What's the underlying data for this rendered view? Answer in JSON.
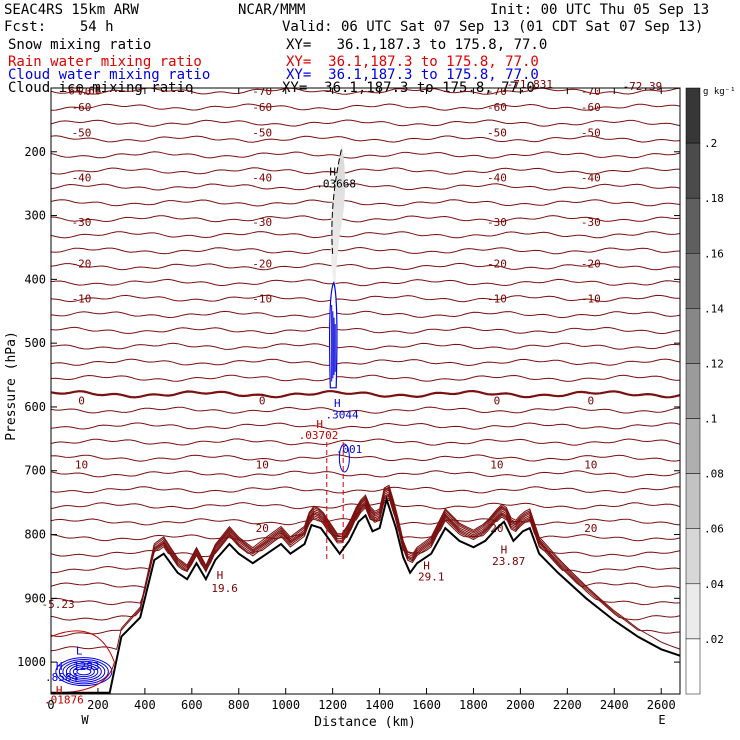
{
  "header": {
    "model": "SEAC4RS 15km ARW",
    "org": "NCAR/MMM",
    "init": "Init: 00 UTC Thu 05 Sep 13",
    "fcst": "Fcst:    54 h",
    "valid": "Valid: 06 UTC Sat 07 Sep 13 (01 CDT Sat 07 Sep 13)",
    "fields": [
      {
        "name": "Snow mixing ratio",
        "xy": "XY=   36.1,187.3 to 175.8, 77.0",
        "color": "#000000"
      },
      {
        "name": "Rain water mixing ratio",
        "xy": "XY=  36.1,187.3 to 175.8, 77.0",
        "color": "#e00000"
      },
      {
        "name": "Cloud water mixing ratio",
        "xy": "XY=  36.1,187.3 to 175.8, 77.0",
        "color": "#0000e0"
      },
      {
        "name": "Cloud ice mixing ratio",
        "xy": "XY=  36.1,187.3 to 175.8, 77.0",
        "color": "#000000"
      }
    ]
  },
  "chart_data": {
    "type": "contour cross-section",
    "xlabel": "Distance (km)",
    "ylabel": "Pressure (hPa)",
    "xlim": [
      0,
      2680
    ],
    "ylim": [
      1050,
      100
    ],
    "x_ticks": [
      0,
      200,
      400,
      600,
      800,
      1000,
      1200,
      1400,
      1600,
      1800,
      2000,
      2200,
      2400,
      2600
    ],
    "y_ticks": [
      200,
      300,
      400,
      500,
      600,
      700,
      800,
      900,
      1000
    ],
    "y_tick_labels": [
      "200",
      "300",
      "400",
      "500",
      "600",
      "700",
      "800",
      "900",
      "1000"
    ],
    "x_tick_labels": [
      "0",
      "200",
      "400",
      "600",
      "800",
      "1000",
      "1200",
      "1400",
      "1600",
      "1800",
      "2000",
      "2200",
      "2400",
      "2600"
    ],
    "end_labels": {
      "west": "W",
      "east": "E"
    },
    "colorbar": {
      "unit": "g kg⁻¹",
      "levels": [
        0.02,
        0.04,
        0.06,
        0.08,
        0.1,
        0.12,
        0.14,
        0.16,
        0.18,
        0.2
      ],
      "labels": [
        ".02",
        ".04",
        ".06",
        ".08",
        ".1",
        ".12",
        ".14",
        ".16",
        ".18",
        ".2"
      ]
    },
    "temperature_contours": [
      {
        "label": "-70",
        "p": 105
      },
      {
        "label": "-60",
        "p": 130
      },
      {
        "label": "-50",
        "p": 170
      },
      {
        "label": "-40",
        "p": 240
      },
      {
        "label": "-30",
        "p": 310
      },
      {
        "label": "-20",
        "p": 375
      },
      {
        "label": "-10",
        "p": 430
      },
      {
        "label": "0",
        "p": 590
      },
      {
        "label": "10",
        "p": 690
      },
      {
        "label": "20",
        "p": 790
      }
    ],
    "annotations": [
      {
        "text": "-72.39",
        "x": 2520,
        "p": 103,
        "color": "#7a0000"
      },
      {
        "text": "-64.66",
        "x": 130,
        "p": 110,
        "color": "#7a0000"
      },
      {
        "text": "-71.831",
        "x": 2040,
        "p": 100,
        "color": "#7a0000"
      },
      {
        "text": "H",
        "x": 1200,
        "p": 237,
        "color": "#000000"
      },
      {
        "text": ".03668",
        "x": 1215,
        "p": 256,
        "color": "#000000"
      },
      {
        "text": "H",
        "x": 1220,
        "p": 600,
        "color": "#0000e0"
      },
      {
        "text": ".3044",
        "x": 1240,
        "p": 618,
        "color": "#0000e0"
      },
      {
        "text": ".001",
        "x": 1270,
        "p": 672,
        "color": "#0000e0"
      },
      {
        "text": "H",
        "x": 1145,
        "p": 633,
        "color": "#c00000"
      },
      {
        "text": ".03702",
        "x": 1140,
        "p": 650,
        "color": "#c00000"
      },
      {
        "text": "H",
        "x": 720,
        "p": 870,
        "color": "#7a0000"
      },
      {
        "text": "19.6",
        "x": 740,
        "p": 890,
        "color": "#7a0000"
      },
      {
        "text": "H",
        "x": 1600,
        "p": 855,
        "color": "#7a0000"
      },
      {
        "text": "29.1",
        "x": 1620,
        "p": 872,
        "color": "#7a0000"
      },
      {
        "text": "H",
        "x": 1930,
        "p": 830,
        "color": "#7a0000"
      },
      {
        "text": "23.87",
        "x": 1950,
        "p": 848,
        "color": "#7a0000"
      },
      {
        "text": "-5.23",
        "x": 30,
        "p": 915,
        "color": "#7a0000"
      },
      {
        "text": "L",
        "x": 120,
        "p": 988,
        "color": "#0000e0"
      },
      {
        "text": "H",
        "x": 35,
        "p": 1012,
        "color": "#0000e0"
      },
      {
        "text": "1283",
        "x": 150,
        "p": 1012,
        "color": "#0000e0"
      },
      {
        "text": ".8584",
        "x": 45,
        "p": 1030,
        "color": "#0000e0"
      },
      {
        "text": "H",
        "x": 35,
        "p": 1050,
        "color": "#c00000"
      },
      {
        "text": ".01876",
        "x": 55,
        "p": 1065,
        "color": "#c00000"
      }
    ],
    "terrain": [
      [
        0,
        1048
      ],
      [
        250,
        1048
      ],
      [
        300,
        960
      ],
      [
        380,
        930
      ],
      [
        440,
        840
      ],
      [
        480,
        830
      ],
      [
        540,
        860
      ],
      [
        580,
        870
      ],
      [
        620,
        845
      ],
      [
        660,
        870
      ],
      [
        700,
        840
      ],
      [
        760,
        815
      ],
      [
        800,
        830
      ],
      [
        860,
        845
      ],
      [
        920,
        830
      ],
      [
        980,
        815
      ],
      [
        1020,
        830
      ],
      [
        1080,
        815
      ],
      [
        1110,
        785
      ],
      [
        1150,
        790
      ],
      [
        1200,
        815
      ],
      [
        1230,
        830
      ],
      [
        1270,
        810
      ],
      [
        1310,
        780
      ],
      [
        1340,
        770
      ],
      [
        1370,
        795
      ],
      [
        1400,
        790
      ],
      [
        1430,
        745
      ],
      [
        1470,
        790
      ],
      [
        1500,
        835
      ],
      [
        1530,
        860
      ],
      [
        1560,
        845
      ],
      [
        1620,
        830
      ],
      [
        1680,
        790
      ],
      [
        1740,
        810
      ],
      [
        1800,
        820
      ],
      [
        1850,
        810
      ],
      [
        1900,
        790
      ],
      [
        1930,
        780
      ],
      [
        1970,
        810
      ],
      [
        2010,
        795
      ],
      [
        2040,
        790
      ],
      [
        2080,
        830
      ],
      [
        2160,
        860
      ],
      [
        2280,
        900
      ],
      [
        2400,
        935
      ],
      [
        2500,
        960
      ],
      [
        2600,
        980
      ],
      [
        2680,
        990
      ]
    ]
  }
}
